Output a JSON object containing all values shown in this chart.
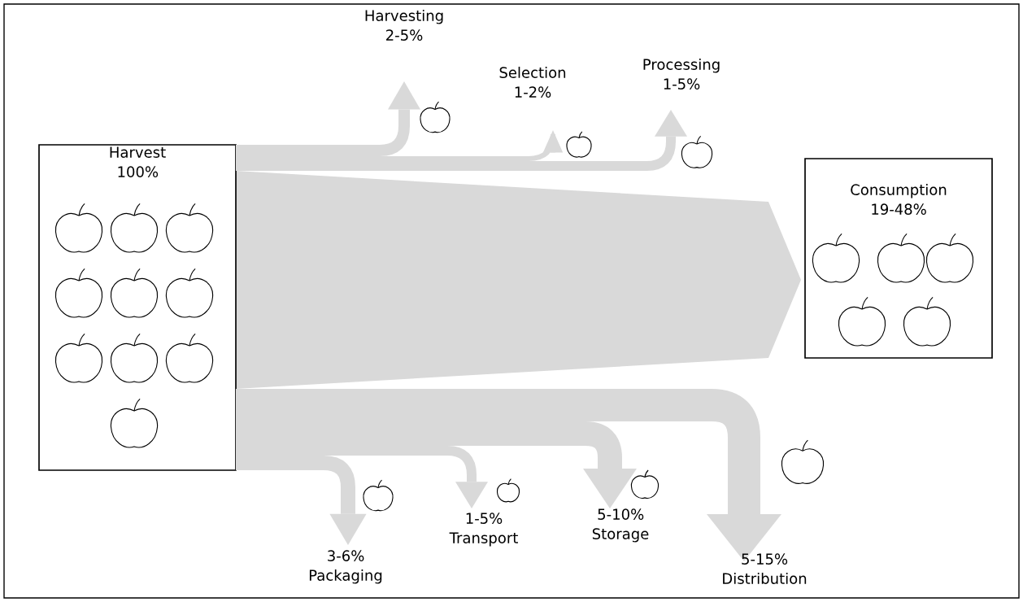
{
  "chart_data": {
    "type": "other",
    "categories": [
      "Harvest",
      "Harvesting",
      "Selection",
      "Processing",
      "Packaging",
      "Transport",
      "Storage",
      "Distribution",
      "Consumption"
    ],
    "series": [
      {
        "values": [
          null,
          2,
          1,
          1,
          3,
          1,
          5,
          5,
          19
        ],
        "value_labels": [
          null,
          "2-",
          "1-",
          "1-",
          "3-",
          "1-",
          "5-",
          "5-",
          "19-"
        ]
      },
      {
        "values": [
          100,
          5,
          2,
          5,
          6,
          5,
          10,
          15,
          48
        ],
        "value_labels": [
          "100%",
          "5%",
          "2%",
          "5%",
          "6%",
          "5%",
          "10%",
          "15%",
          "48%"
        ]
      }
    ],
    "color": "#d9d9d9"
  }
}
